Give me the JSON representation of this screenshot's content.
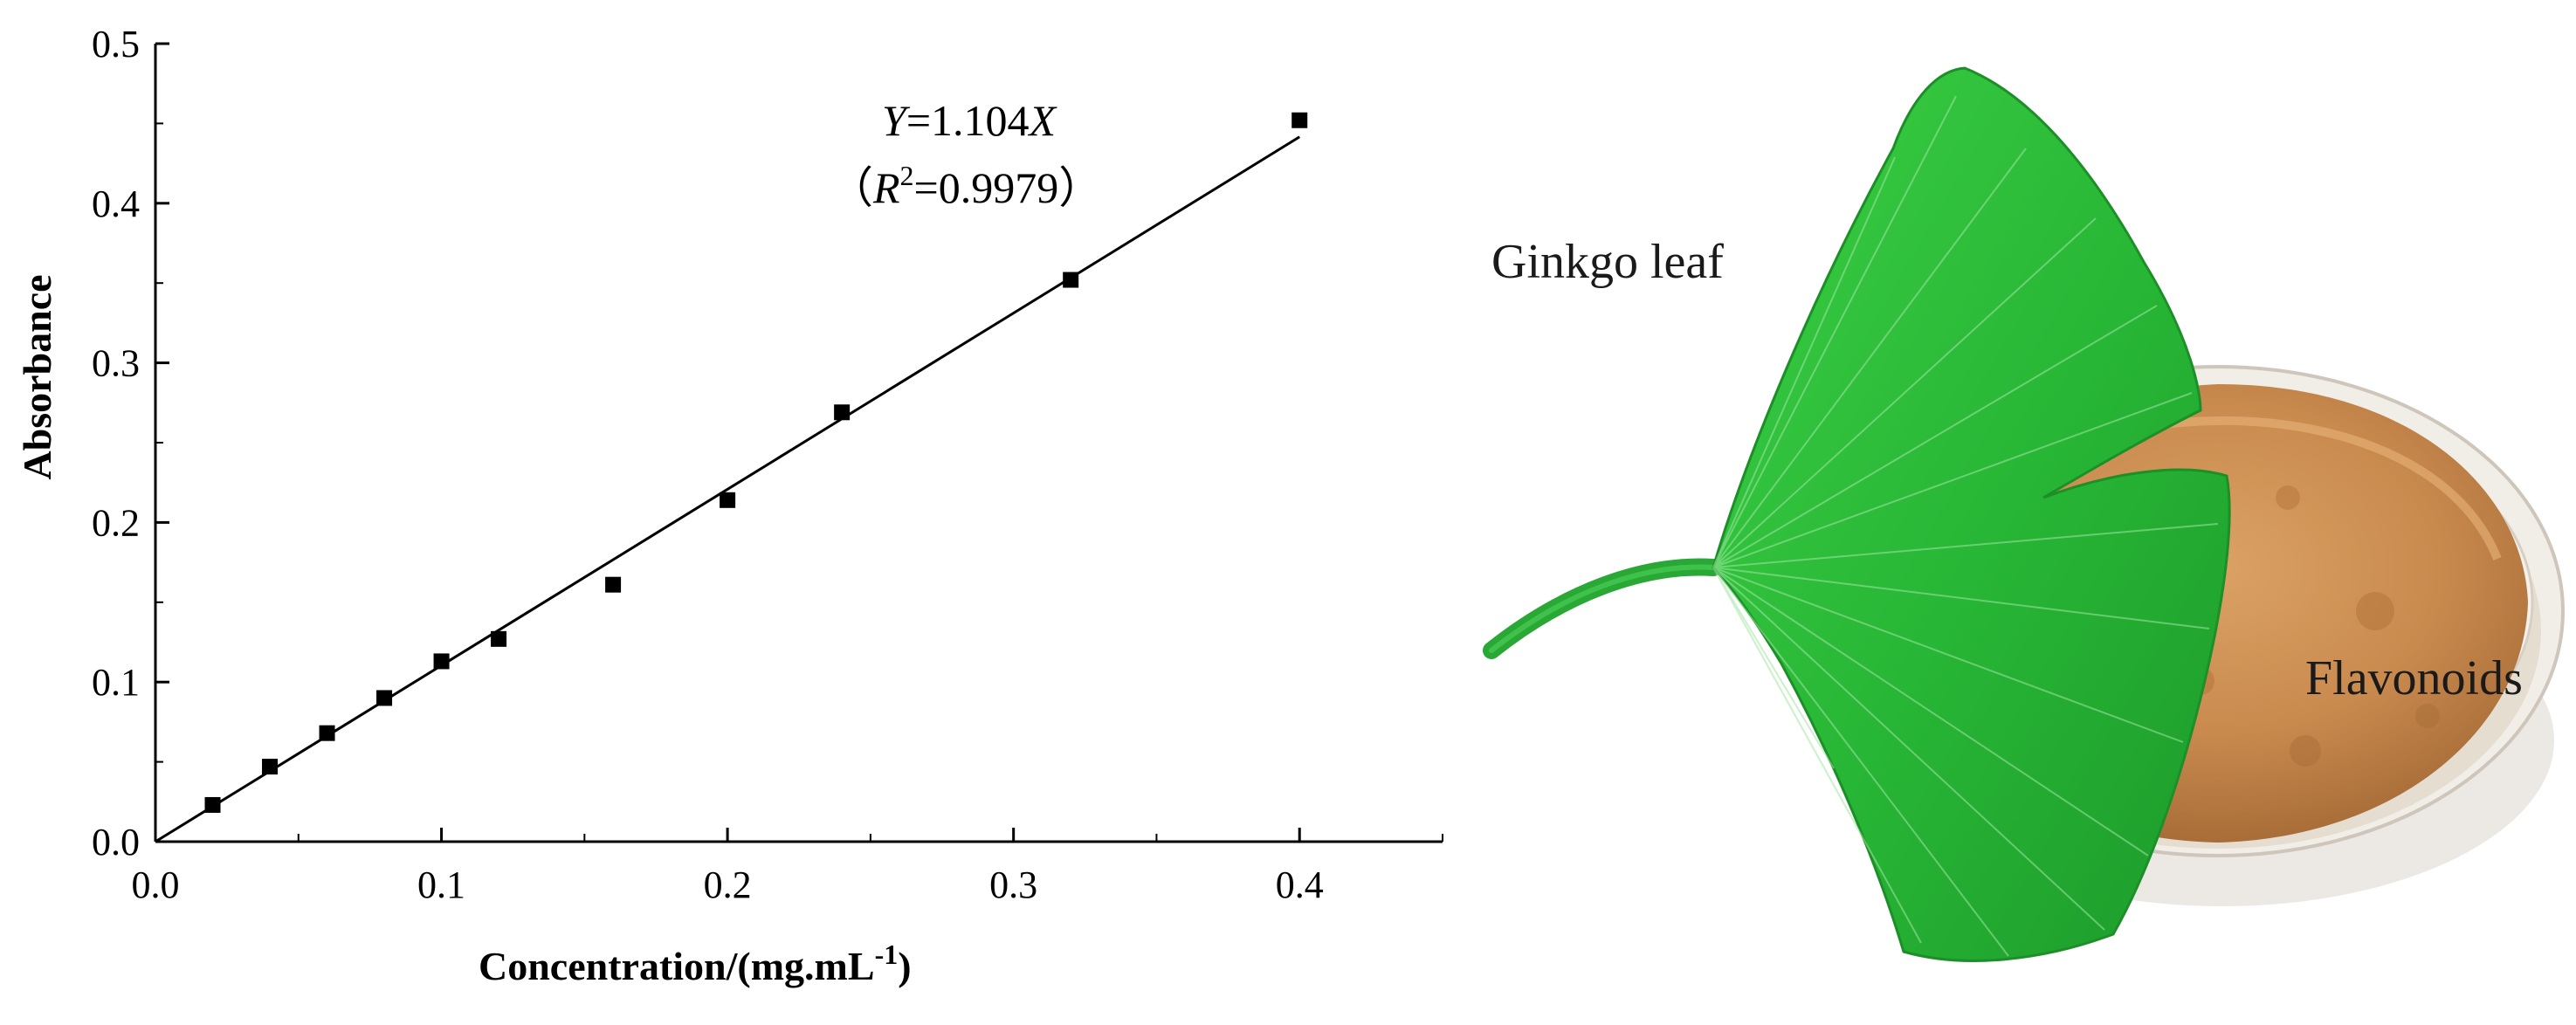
{
  "chart_data": {
    "type": "scatter",
    "xlabel": "Concentration/(mg.mL",
    "xlabel_sup": "-1",
    "xlabel_close": ")",
    "ylabel": "Absorbance",
    "xlim": [
      0,
      0.45
    ],
    "ylim": [
      0,
      0.5
    ],
    "x_ticks": [
      "0.0",
      "0.1",
      "0.2",
      "0.3",
      "0.4"
    ],
    "x_tick_values": [
      0,
      0.1,
      0.2,
      0.3,
      0.4
    ],
    "y_ticks": [
      "0.0",
      "0.1",
      "0.2",
      "0.3",
      "0.4",
      "0.5"
    ],
    "y_tick_values": [
      0,
      0.1,
      0.2,
      0.3,
      0.4,
      0.5
    ],
    "grid": false,
    "series": [
      {
        "marker": "square",
        "points": [
          {
            "x": 0.02,
            "y": 0.023
          },
          {
            "x": 0.04,
            "y": 0.047
          },
          {
            "x": 0.06,
            "y": 0.068
          },
          {
            "x": 0.08,
            "y": 0.09
          },
          {
            "x": 0.1,
            "y": 0.113
          },
          {
            "x": 0.12,
            "y": 0.127
          },
          {
            "x": 0.16,
            "y": 0.161
          },
          {
            "x": 0.2,
            "y": 0.214
          },
          {
            "x": 0.24,
            "y": 0.269
          },
          {
            "x": 0.32,
            "y": 0.352
          },
          {
            "x": 0.4,
            "y": 0.452
          }
        ]
      }
    ],
    "fit_line": {
      "slope": 1.104,
      "intercept": 0,
      "x_range": [
        0,
        0.4
      ]
    },
    "annotation": {
      "eq_y": "Y",
      "eq_mid": "=1.104",
      "eq_x": "X",
      "r_open": "（",
      "r_var": "R",
      "r_sup": "2",
      "r_value": "=0.9979）"
    }
  },
  "photo": {
    "labels": {
      "leaf": "Ginkgo leaf",
      "powder": "Flavonoids"
    },
    "colors": {
      "leaf": "#2fbf3c",
      "leaf_dark": "#1f8f2a",
      "powder": "#c98a4e",
      "dish": "#e9e4dd"
    }
  }
}
